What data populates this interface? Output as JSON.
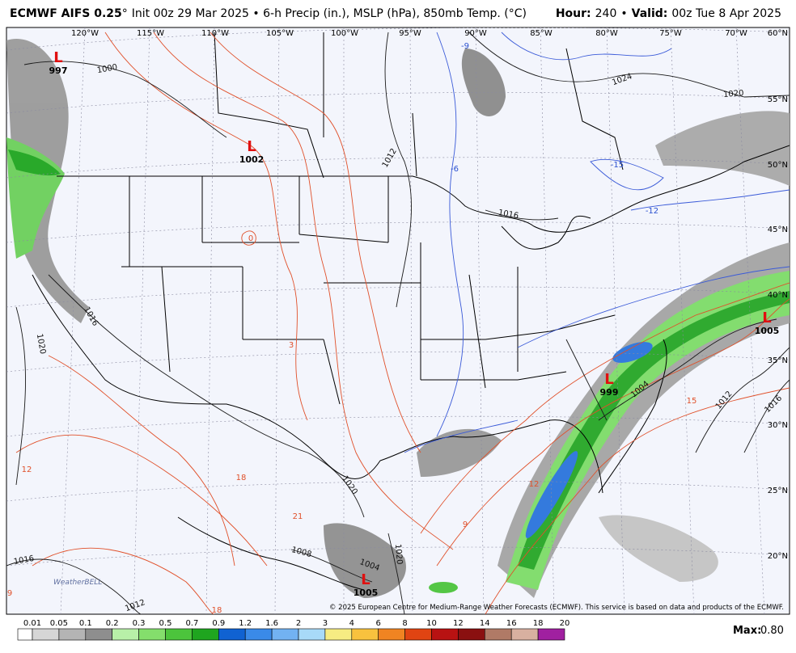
{
  "header": {
    "title_main": "ECMWF AIFS 0.25",
    "title_degree": "°",
    "title_rest": "Init 00z 29 Mar 2025 • 6-h Precip (in.), MSLP (hPa), 850mb Temp. (°C)",
    "hour_label": "Hour:",
    "hour_value": "240",
    "separator": "•",
    "valid_label": "Valid:",
    "valid_value": "00z Tue 8 Apr 2025"
  },
  "map": {
    "longitudes": [
      "120°W",
      "115°W",
      "110°W",
      "105°W",
      "100°W",
      "95°W",
      "90°W",
      "85°W",
      "80°W",
      "75°W",
      "70°W"
    ],
    "latitudes": [
      "60°N",
      "55°N",
      "50°N",
      "45°N",
      "40°N",
      "35°N",
      "30°N",
      "25°N",
      "20°N"
    ],
    "lows": [
      {
        "symbol": "L",
        "pressure": "997"
      },
      {
        "symbol": "L",
        "pressure": "1002"
      },
      {
        "symbol": "L",
        "pressure": "999"
      },
      {
        "symbol": "L",
        "pressure": "1005"
      },
      {
        "symbol": "L",
        "pressure": "1005"
      }
    ],
    "isobar_labels": [
      "1000",
      "1012",
      "1016",
      "1020",
      "1020",
      "1020",
      "1008",
      "1004",
      "1016",
      "1012",
      "1004",
      "1012",
      "1016",
      "1020",
      "1024",
      "1016"
    ],
    "temperature_labels": [
      "-6",
      "-9",
      "-12",
      "-15",
      "0",
      "3",
      "12",
      "18",
      "21",
      "9",
      "12",
      "15",
      "18",
      "9"
    ],
    "logo": "WeatherBELL",
    "copyright": "© 2025 European Centre for Medium-Range Weather Forecasts (ECMWF). This service is based on data and products of the ECMWF."
  },
  "legend": {
    "labels": [
      "0.01",
      "0.05",
      "0.1",
      "0.2",
      "0.3",
      "0.5",
      "0.7",
      "0.9",
      "1.2",
      "1.6",
      "2",
      "3",
      "4",
      "6",
      "8",
      "10",
      "12",
      "14",
      "16",
      "18",
      "20"
    ],
    "colors": [
      "#ffffff",
      "#d6d6d6",
      "#b4b4b4",
      "#8e8e8e",
      "#b8f0a8",
      "#84de6c",
      "#4cc43c",
      "#1fa51f",
      "#1062d2",
      "#3a8ae8",
      "#72b2f2",
      "#a8daf8",
      "#f6ec82",
      "#f8c23e",
      "#f08422",
      "#e04412",
      "#b81212",
      "#8a1010",
      "#b07a66",
      "#d8b0a0",
      "#a020a0"
    ],
    "max_label": "Max:",
    "max_value": "0.80"
  }
}
